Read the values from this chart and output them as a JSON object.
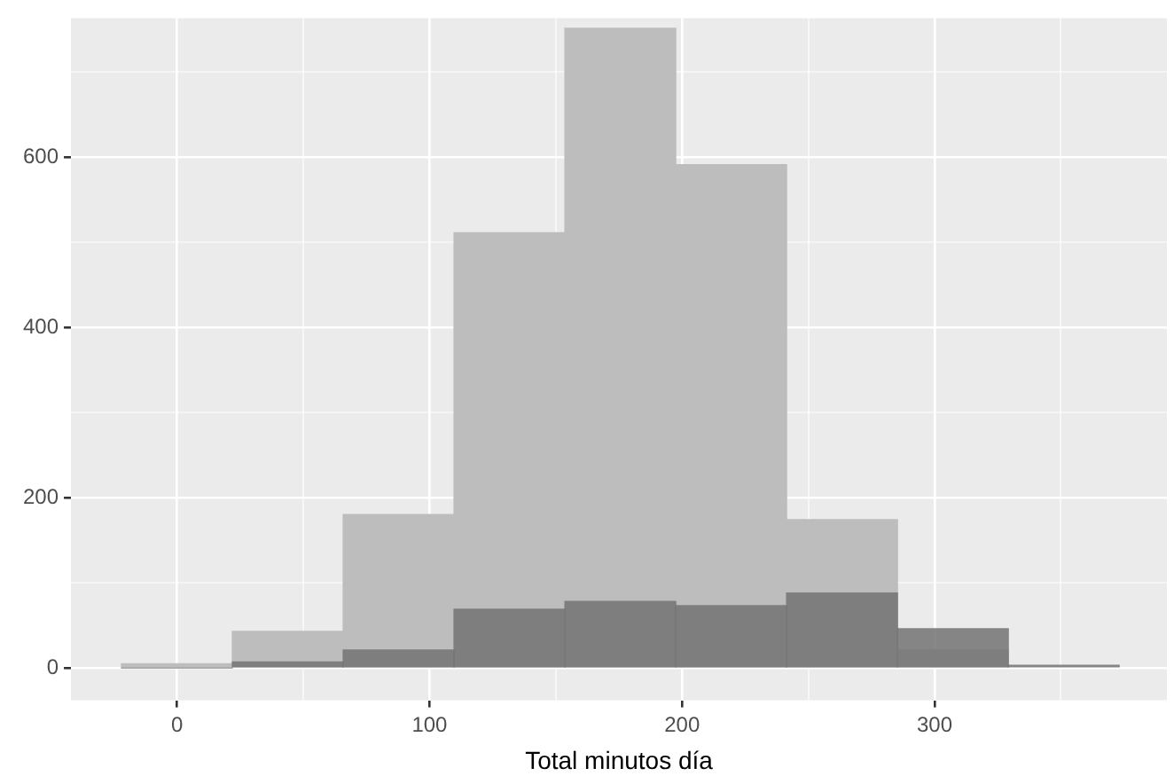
{
  "chart_data": {
    "type": "histogram",
    "xlabel": "Total minutos día",
    "bins": [
      -22,
      21.9,
      65.8,
      109.7,
      153.6,
      197.5,
      241.4,
      285.3,
      329.2,
      373.1
    ],
    "series": [
      {
        "color": "#bdbdbd",
        "values": [
          5,
          43,
          180,
          511,
          751,
          591,
          174,
          21,
          null
        ]
      },
      {
        "color": "#737373",
        "values": [
          0,
          7,
          21,
          69,
          78,
          73,
          88,
          46,
          3
        ]
      }
    ],
    "xlim": [
      -42,
      392
    ],
    "xticks": [
      0,
      {
        "value": 50,
        "label": null
      },
      100,
      {
        "value": 150,
        "label": null
      },
      200,
      {
        "value": 250,
        "label": null
      },
      300,
      {
        "value": 350,
        "label": null
      }
    ],
    "ylim": [
      -38,
      763
    ],
    "yticks": [
      0,
      {
        "value": 100,
        "label": null
      },
      200,
      {
        "value": 300,
        "label": null
      },
      400,
      {
        "value": 500,
        "label": null
      },
      600,
      {
        "value": 700,
        "label": null
      }
    ],
    "grid": true,
    "legend": false
  }
}
